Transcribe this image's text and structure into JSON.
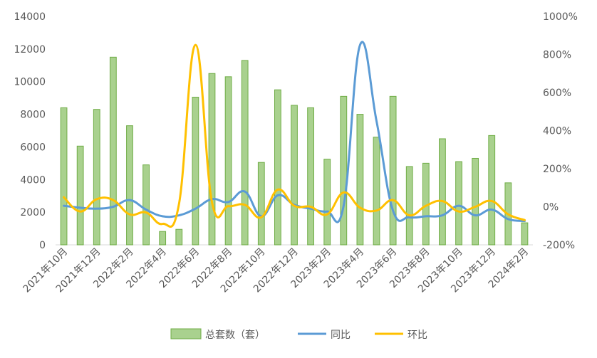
{
  "chart_data": {
    "type": "bar",
    "categories": [
      "2021年10月",
      "2021年11月",
      "2021年12月",
      "2022年1月",
      "2022年2月",
      "2022年3月",
      "2022年4月",
      "2022年5月",
      "2022年6月",
      "2022年7月",
      "2022年8月",
      "2022年9月",
      "2022年10月",
      "2022年11月",
      "2022年12月",
      "2023年1月",
      "2023年2月",
      "2023年3月",
      "2023年4月",
      "2023年5月",
      "2023年6月",
      "2023年7月",
      "2023年8月",
      "2023年9月",
      "2023年10月",
      "2023年11月",
      "2023年12月",
      "2024年1月",
      "2024年2月"
    ],
    "x_tick_labels": [
      "2021年10月",
      "2021年12月",
      "2022年2月",
      "2022年4月",
      "2022年6月",
      "2022年8月",
      "2022年10月",
      "2022年12月",
      "2023年2月",
      "2023年4月",
      "2023年6月",
      "2023年8月",
      "2023年10月",
      "2023年12月",
      "2024年2月"
    ],
    "series": [
      {
        "name": "总套数（套）",
        "type": "bar",
        "axis": "left",
        "color": "#a9d18e",
        "stroke": "#70ad47",
        "values": [
          8400,
          6050,
          8300,
          11500,
          7300,
          4900,
          820,
          950,
          9050,
          10500,
          10300,
          11300,
          5050,
          9500,
          8550,
          8400,
          5250,
          9100,
          8000,
          6600,
          9100,
          4800,
          5000,
          6500,
          5100,
          5300,
          6700,
          3800,
          1350
        ]
      },
      {
        "name": "同比",
        "type": "line",
        "axis": "right",
        "color": "#5b9bd5",
        "values": [
          0.05,
          -0.05,
          -0.1,
          0.0,
          0.35,
          -0.15,
          -0.5,
          -0.45,
          -0.1,
          0.4,
          0.25,
          0.8,
          -0.5,
          0.6,
          0.1,
          -0.1,
          -0.25,
          0.05,
          8.5,
          4.5,
          -0.2,
          -0.55,
          -0.5,
          -0.45,
          0.05,
          -0.45,
          -0.15,
          -0.65,
          -0.75
        ]
      },
      {
        "name": "环比",
        "type": "line",
        "axis": "right",
        "color": "#ffc000",
        "values": [
          0.5,
          -0.25,
          0.4,
          0.35,
          -0.4,
          -0.3,
          -0.9,
          0.15,
          8.5,
          0.25,
          0.03,
          0.1,
          -0.55,
          0.9,
          0.05,
          0.0,
          -0.4,
          0.75,
          -0.05,
          -0.2,
          0.35,
          -0.45,
          0.05,
          0.3,
          -0.25,
          0.0,
          0.3,
          -0.4,
          -0.7
        ]
      }
    ],
    "y_left": {
      "min": 0,
      "max": 14000,
      "step": 2000,
      "ticks": [
        "0",
        "2000",
        "4000",
        "6000",
        "8000",
        "10000",
        "12000",
        "14000"
      ]
    },
    "y_right": {
      "min": -2,
      "max": 10,
      "step": 2,
      "ticks": [
        "-200%",
        "0%",
        "200%",
        "400%",
        "600%",
        "800%",
        "1000%"
      ]
    },
    "grid": false,
    "legend_position": "bottom"
  }
}
